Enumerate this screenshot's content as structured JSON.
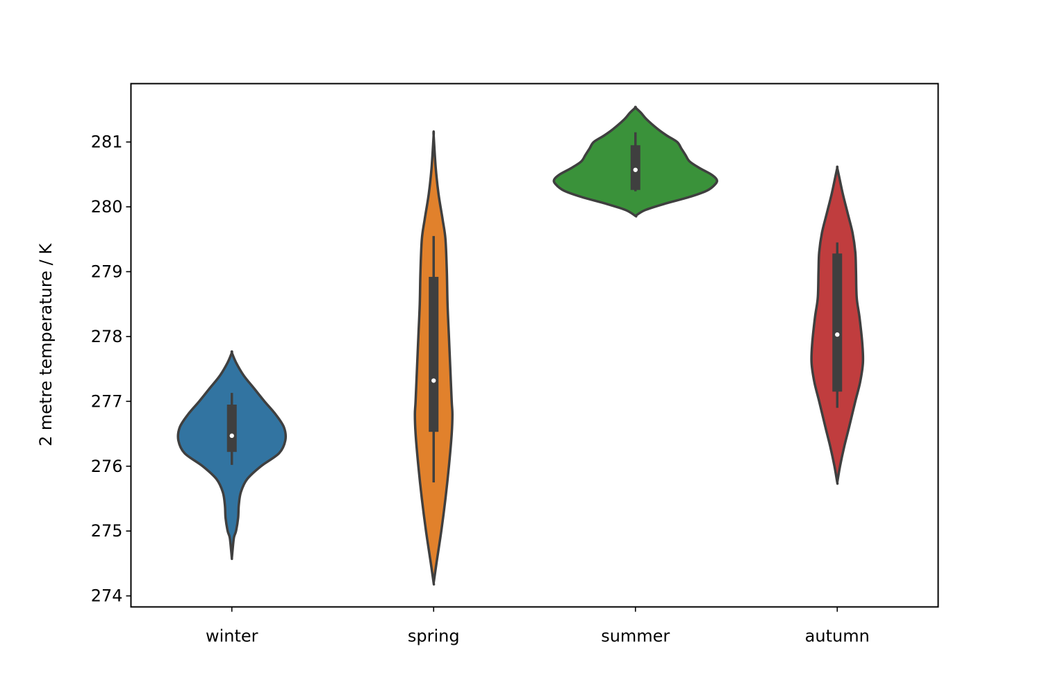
{
  "chart_data": {
    "type": "violin",
    "title": "",
    "xlabel": "",
    "ylabel": "2 metre temperature / K",
    "ylim": [
      273.83,
      281.9
    ],
    "yticks": [
      274,
      275,
      276,
      277,
      278,
      279,
      280,
      281
    ],
    "categories": [
      "winter",
      "spring",
      "summer",
      "autumn"
    ],
    "colors": [
      "#3274a1",
      "#e1812c",
      "#3a923a",
      "#c03d3e"
    ],
    "violins": [
      {
        "category": "winter",
        "min": 276.02,
        "q1": 276.22,
        "median": 276.47,
        "q3": 276.95,
        "max": 277.13,
        "range_low": 274.58,
        "range_high": 277.75,
        "profile": [
          [
            274.58,
            0
          ],
          [
            274.7,
            1
          ],
          [
            274.9,
            3
          ],
          [
            275.0,
            6
          ],
          [
            275.2,
            9
          ],
          [
            275.4,
            10
          ],
          [
            275.6,
            13
          ],
          [
            275.8,
            22
          ],
          [
            276.0,
            42
          ],
          [
            276.2,
            68
          ],
          [
            276.4,
            77
          ],
          [
            276.6,
            75
          ],
          [
            276.8,
            63
          ],
          [
            277.0,
            47
          ],
          [
            277.2,
            32
          ],
          [
            277.4,
            17
          ],
          [
            277.6,
            6
          ],
          [
            277.75,
            0
          ]
        ]
      },
      {
        "category": "spring",
        "min": 275.75,
        "q1": 276.53,
        "median": 277.32,
        "q3": 278.92,
        "max": 279.55,
        "range_low": 274.2,
        "range_high": 281.1,
        "profile": [
          [
            274.2,
            0
          ],
          [
            274.5,
            4
          ],
          [
            275.0,
            11
          ],
          [
            275.5,
            17
          ],
          [
            276.0,
            22
          ],
          [
            276.5,
            26
          ],
          [
            276.8,
            27
          ],
          [
            277.0,
            26
          ],
          [
            277.5,
            24
          ],
          [
            278.0,
            22
          ],
          [
            278.5,
            20
          ],
          [
            279.0,
            19
          ],
          [
            279.5,
            17
          ],
          [
            279.8,
            13
          ],
          [
            280.2,
            7
          ],
          [
            280.6,
            3
          ],
          [
            281.1,
            0
          ]
        ]
      },
      {
        "category": "summer",
        "min": 280.24,
        "q1": 280.26,
        "median": 280.57,
        "q3": 280.95,
        "max": 281.15,
        "range_low": 279.86,
        "range_high": 281.53,
        "profile": [
          [
            279.86,
            0
          ],
          [
            279.95,
            14
          ],
          [
            280.05,
            43
          ],
          [
            280.15,
            77
          ],
          [
            280.25,
            103
          ],
          [
            280.35,
            115
          ],
          [
            280.42,
            117
          ],
          [
            280.5,
            109
          ],
          [
            280.6,
            92
          ],
          [
            280.7,
            78
          ],
          [
            280.8,
            72
          ],
          [
            280.9,
            66
          ],
          [
            281.0,
            60
          ],
          [
            281.1,
            45
          ],
          [
            281.2,
            32
          ],
          [
            281.35,
            16
          ],
          [
            281.45,
            8
          ],
          [
            281.53,
            0
          ]
        ]
      },
      {
        "category": "autumn",
        "min": 276.9,
        "q1": 277.15,
        "median": 278.03,
        "q3": 279.28,
        "max": 279.45,
        "range_low": 275.75,
        "range_high": 280.6,
        "profile": [
          [
            275.75,
            0
          ],
          [
            276.0,
            4
          ],
          [
            276.3,
            10
          ],
          [
            276.6,
            17
          ],
          [
            277.0,
            26
          ],
          [
            277.3,
            33
          ],
          [
            277.6,
            37
          ],
          [
            277.9,
            36
          ],
          [
            278.3,
            32
          ],
          [
            278.6,
            28
          ],
          [
            279.0,
            27
          ],
          [
            279.3,
            26
          ],
          [
            279.6,
            22
          ],
          [
            279.9,
            15
          ],
          [
            280.2,
            8
          ],
          [
            280.45,
            3
          ],
          [
            280.6,
            0
          ]
        ]
      }
    ]
  }
}
